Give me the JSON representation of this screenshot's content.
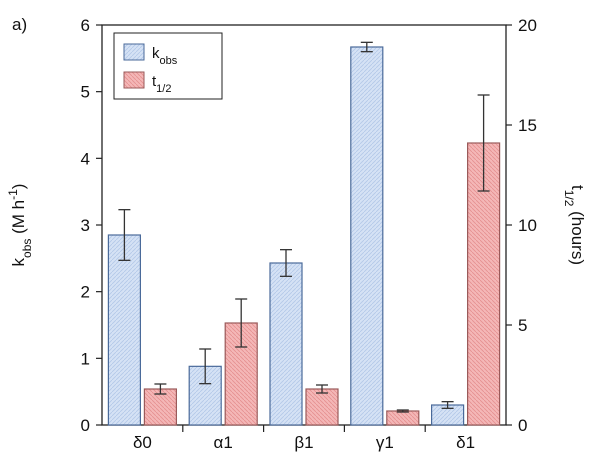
{
  "chart_data": {
    "type": "bar",
    "panel_label": "a)",
    "categories": [
      "δ0",
      "α1",
      "β1",
      "γ1",
      "δ1"
    ],
    "ylabel_left": {
      "main": "k",
      "sub": "obs",
      "units_pre": " (M h",
      "units_sup": "-1",
      "units_post": ")"
    },
    "ylabel_right": {
      "main": "t",
      "sub": "1/2",
      "units": " (hours)"
    },
    "y_left": {
      "lim": [
        0,
        6
      ],
      "ticks": [
        "0",
        "1",
        "2",
        "3",
        "4",
        "5",
        "6"
      ]
    },
    "y_right": {
      "lim": [
        0,
        20
      ],
      "ticks": [
        "0",
        "5",
        "10",
        "15",
        "20"
      ]
    },
    "series": [
      {
        "name_main": "k",
        "name_sub": "obs",
        "axis": "left",
        "values": [
          2.85,
          0.88,
          2.43,
          5.67,
          0.3
        ],
        "errors": [
          0.38,
          0.26,
          0.2,
          0.07,
          0.05
        ],
        "fill": "#d5e2f5",
        "stroke": "#4a6a9a"
      },
      {
        "name_main": "t",
        "name_sub": "1/2",
        "axis": "right",
        "values": [
          1.8,
          5.1,
          1.8,
          0.7,
          14.1
        ],
        "errors": [
          0.25,
          1.2,
          0.2,
          0.05,
          2.4
        ],
        "fill": "#f4b7b7",
        "stroke": "#9a5a5a"
      }
    ],
    "legend": {
      "placement": "top-left"
    },
    "grid": false
  }
}
